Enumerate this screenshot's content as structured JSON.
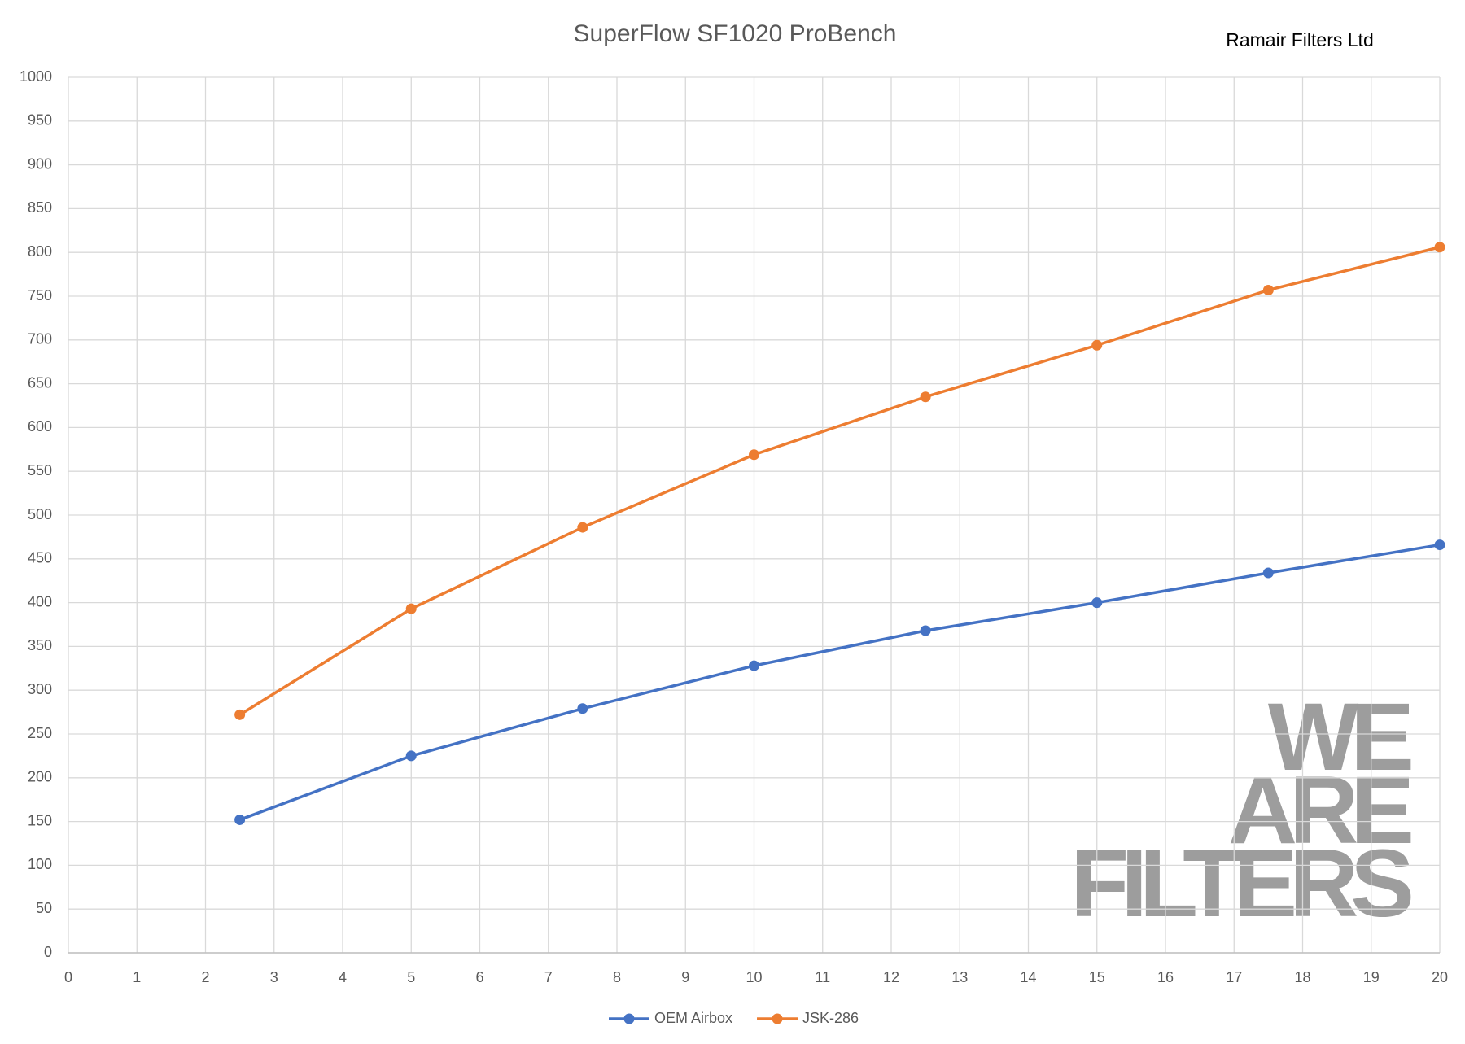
{
  "chart_data": {
    "type": "line",
    "title": "SuperFlow SF1020 ProBench",
    "corner_label": "Ramair Filters Ltd",
    "watermark": [
      "WE",
      "ARE",
      "FILTERS"
    ],
    "x": [
      2.5,
      5,
      7.5,
      10,
      12.5,
      15,
      17.5,
      20
    ],
    "series": [
      {
        "name": "OEM Airbox",
        "color": "#4472c4",
        "values": [
          152,
          225,
          279,
          328,
          368,
          400,
          434,
          466
        ]
      },
      {
        "name": "JSK-286",
        "color": "#ed7d31",
        "values": [
          272,
          393,
          486,
          569,
          635,
          694,
          757,
          806
        ]
      }
    ],
    "xlim": [
      0,
      20
    ],
    "xticks": [
      0,
      1,
      2,
      3,
      4,
      5,
      6,
      7,
      8,
      9,
      10,
      11,
      12,
      13,
      14,
      15,
      16,
      17,
      18,
      19,
      20
    ],
    "ylim": [
      0,
      1000
    ],
    "yticks": [
      0,
      50,
      100,
      150,
      200,
      250,
      300,
      350,
      400,
      450,
      500,
      550,
      600,
      650,
      700,
      750,
      800,
      850,
      900,
      950,
      1000
    ],
    "grid": true,
    "legend": "bottom"
  }
}
